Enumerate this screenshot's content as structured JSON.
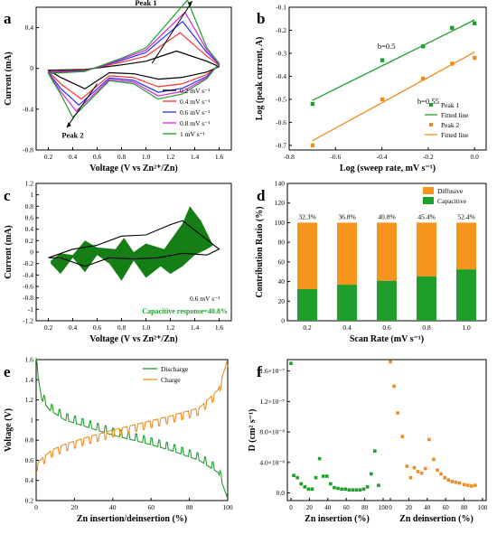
{
  "chart_data": [
    {
      "type": "line",
      "panel": "a",
      "xlabel": "Voltage (V vs Zn²⁺/Zn)",
      "ylabel": "Current (mA)",
      "xlim": [
        0.1,
        1.7
      ],
      "ylim": [
        -0.8,
        0.6
      ],
      "xticks": [
        0.2,
        0.4,
        0.6,
        0.8,
        1.0,
        1.2,
        1.4,
        1.6
      ],
      "yticks": [
        -0.8,
        -0.4,
        0.0,
        0.4
      ],
      "annotations": [
        "Peak 1",
        "Peak 2"
      ],
      "legend": "bottom-right",
      "series": [
        {
          "name": "0.2 mV s⁻¹",
          "color": "#000000",
          "anodic_peak": [
            1.25,
            0.17
          ],
          "cathodic_peak": [
            0.5,
            -0.2
          ],
          "scale": 0.35
        },
        {
          "name": "0.4 mV s⁻¹",
          "color": "#ff3030",
          "anodic_peak": [
            1.28,
            0.35
          ],
          "cathodic_peak": [
            0.47,
            -0.3
          ],
          "scale": 0.6
        },
        {
          "name": "0.6 mV s⁻¹",
          "color": "#2d2df0",
          "anodic_peak": [
            1.3,
            0.46
          ],
          "cathodic_peak": [
            0.45,
            -0.36
          ],
          "scale": 0.78
        },
        {
          "name": "0.8 mV s⁻¹",
          "color": "#e020e0",
          "anodic_peak": [
            1.32,
            0.55
          ],
          "cathodic_peak": [
            0.43,
            -0.42
          ],
          "scale": 0.9
        },
        {
          "name": "1 mV s⁻¹",
          "color": "#1e9e2a",
          "anodic_peak": [
            1.34,
            0.67
          ],
          "cathodic_peak": [
            0.4,
            -0.48
          ],
          "scale": 1.0
        }
      ]
    },
    {
      "type": "scatter",
      "panel": "b",
      "xlabel": "Log (sweep rate, mV s⁻¹)",
      "ylabel": "Log (peak current, A)",
      "xlim": [
        -0.8,
        0.05
      ],
      "ylim": [
        -0.72,
        -0.1
      ],
      "xticks": [
        -0.8,
        -0.6,
        -0.4,
        -0.2,
        0.0
      ],
      "yticks": [
        -0.7,
        -0.6,
        -0.5,
        -0.4,
        -0.3,
        -0.2,
        -0.1
      ],
      "annotations": [
        "b=0.5",
        "b=0.55"
      ],
      "legend": "bottom-right",
      "series": [
        {
          "name": "Peak 1",
          "color": "#1e9e2a",
          "x": [
            -0.699,
            -0.398,
            -0.222,
            -0.097,
            0.0
          ],
          "y": [
            -0.52,
            -0.33,
            -0.27,
            -0.19,
            -0.17
          ]
        },
        {
          "name": "Fitted line",
          "color": "#1e9e2a",
          "kind": "line",
          "x": [
            -0.7,
            0.0
          ],
          "y": [
            -0.505,
            -0.155
          ]
        },
        {
          "name": "Peak 2",
          "color": "#f08c1e",
          "x": [
            -0.699,
            -0.398,
            -0.222,
            -0.097,
            0.0
          ],
          "y": [
            -0.7,
            -0.5,
            -0.41,
            -0.345,
            -0.32
          ]
        },
        {
          "name": "Fitted line",
          "color": "#f08c1e",
          "kind": "line",
          "x": [
            -0.7,
            0.0
          ],
          "y": [
            -0.68,
            -0.295
          ]
        }
      ]
    },
    {
      "type": "area",
      "panel": "c",
      "xlabel": "Voltage (V vs Zn²⁺/Zn)",
      "ylabel": "Current (mA)",
      "xlim": [
        0.1,
        1.7
      ],
      "ylim": [
        -1.2,
        1.2
      ],
      "xticks": [
        0.2,
        0.4,
        0.6,
        0.8,
        1.0,
        1.2,
        1.4,
        1.6
      ],
      "yticks": [
        -1.2,
        -1.0,
        -0.8,
        -0.6,
        -0.4,
        -0.2,
        0.0,
        0.2,
        0.4,
        0.6,
        0.8,
        1.0,
        1.2
      ],
      "annotations": [
        "0.6 mV s⁻¹",
        "Capacitive response=40.8%"
      ],
      "fill_color": "#157f15"
    },
    {
      "type": "bar",
      "panel": "d",
      "xlabel": "Scan Rate (mV s⁻¹)",
      "ylabel": "Contribution Ratio (%)",
      "ylim": [
        0,
        140
      ],
      "yticks": [
        0,
        20,
        40,
        60,
        80,
        100,
        120,
        140
      ],
      "categories": [
        "0.2",
        "0.4",
        "0.6",
        "0.8",
        "1.0"
      ],
      "series": [
        {
          "name": "Capacitive",
          "color": "#1e9e2a",
          "values": [
            32.3,
            36.8,
            40.8,
            45.4,
            52.4
          ]
        },
        {
          "name": "Diffusive",
          "color": "#f7941d",
          "values": [
            67.7,
            63.2,
            59.2,
            54.6,
            47.6
          ]
        }
      ],
      "data_labels": [
        "32.3%",
        "36.8%",
        "40.8%",
        "45.4%",
        "52.4%"
      ],
      "legend": "top-right"
    },
    {
      "type": "line",
      "panel": "e",
      "xlabel": "Zn insertion/deinsertion (%)",
      "ylabel": "Voltage (V)",
      "xlim": [
        0,
        100
      ],
      "ylim": [
        0.2,
        1.6
      ],
      "xticks": [
        0,
        20,
        40,
        60,
        80,
        100
      ],
      "yticks": [
        0.2,
        0.4,
        0.6,
        0.8,
        1.0,
        1.2,
        1.4,
        1.6
      ],
      "legend": "top-right",
      "series": [
        {
          "name": "Discharge",
          "color": "#1e9e2a",
          "x": [
            0,
            3,
            7,
            15,
            25,
            40,
            55,
            70,
            85,
            95,
            100
          ],
          "y": [
            1.55,
            1.2,
            1.1,
            1.0,
            0.94,
            0.85,
            0.78,
            0.7,
            0.6,
            0.48,
            0.22
          ]
        },
        {
          "name": "Charge",
          "color": "#f08c1e",
          "x": [
            0,
            3,
            8,
            15,
            25,
            40,
            55,
            70,
            85,
            95,
            100
          ],
          "y": [
            0.55,
            0.62,
            0.7,
            0.76,
            0.82,
            0.9,
            0.97,
            1.04,
            1.12,
            1.3,
            1.6
          ]
        }
      ]
    },
    {
      "type": "scatter",
      "panel": "f",
      "ylabel": "D (cm² s⁻¹)",
      "xlim": [
        -2,
        102
      ],
      "ylim": [
        -1e-08,
        1.75e-07
      ],
      "xticks": [
        0,
        20,
        40,
        60,
        80,
        100
      ],
      "ytick_labels": [
        "0.0",
        "4.0×10⁻⁸",
        "8.0×10⁻⁸",
        "1.2×10⁻⁷",
        "1.6×10⁻⁷"
      ],
      "yticks": [
        0,
        4e-08,
        8e-08,
        1.2e-07,
        1.6e-07
      ],
      "x_group_labels": [
        "Zn insertion (%)",
        "Zn deinsertion (%)"
      ],
      "series": [
        {
          "name": "insertion",
          "color": "#1e9e2a",
          "x": [
            0,
            3,
            7,
            11,
            15,
            19,
            23,
            27,
            31,
            35,
            39,
            43,
            47,
            51,
            55,
            59,
            63,
            67,
            71,
            75,
            79,
            83,
            87,
            91,
            95
          ],
          "y": [
            1.7e-07,
            2.3e-08,
            2e-08,
            1.2e-08,
            8e-09,
            5e-09,
            5e-09,
            2e-08,
            4.5e-08,
            2.2e-08,
            2.2e-08,
            1.2e-08,
            7e-09,
            6e-09,
            5e-09,
            5e-09,
            4e-09,
            4e-09,
            4e-09,
            4e-09,
            5e-09,
            8e-09,
            2.5e-08,
            5.5e-08,
            1e-08
          ]
        },
        {
          "name": "deinsertion",
          "color": "#f08c1e",
          "x": [
            0,
            4,
            8,
            13,
            18,
            22,
            26,
            30,
            34,
            38,
            42,
            47,
            51,
            55,
            59,
            63,
            67,
            71,
            75,
            80,
            84,
            88,
            92
          ],
          "y": [
            1.72e-07,
            1.4e-07,
            1.05e-07,
            7.4e-08,
            3.5e-08,
            2e-08,
            3.3e-08,
            2.8e-08,
            2.6e-08,
            3.2e-08,
            7e-08,
            4.4e-08,
            3e-08,
            2.5e-08,
            2e-08,
            1.7e-08,
            1.5e-08,
            1.4e-08,
            1.3e-08,
            1.1e-08,
            1e-08,
            9e-09,
            1e-08
          ]
        }
      ]
    }
  ],
  "panel_letters": [
    "a",
    "b",
    "c",
    "d",
    "e",
    "f"
  ]
}
